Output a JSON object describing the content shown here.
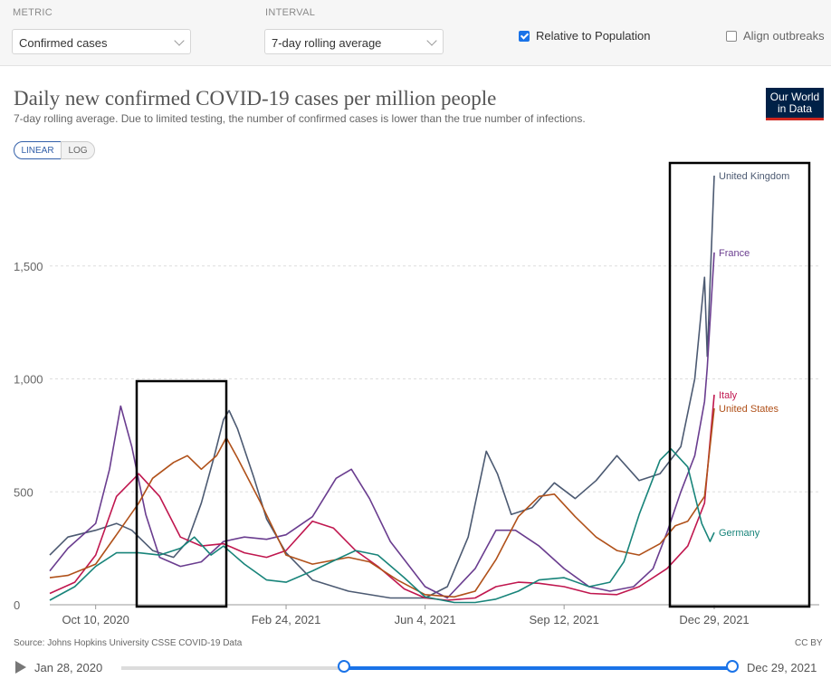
{
  "controls": {
    "metric_label": "METRIC",
    "metric_value": "Confirmed cases",
    "interval_label": "INTERVAL",
    "interval_value": "7-day rolling average",
    "relative_label": "Relative to Population",
    "relative_checked": true,
    "align_label": "Align outbreaks",
    "align_checked": false
  },
  "header": {
    "title": "Daily new confirmed COVID-19 cases per million people",
    "subtitle": "7-day rolling average. Due to limited testing, the number of confirmed cases is lower than the true number of infections.",
    "logo_line1": "Our World",
    "logo_line2": "in Data"
  },
  "scale_toggle": {
    "linear": "LINEAR",
    "log": "LOG",
    "active": "LINEAR"
  },
  "chart_data": {
    "type": "line",
    "ylim": [
      0,
      1900
    ],
    "yticks": [
      0,
      500,
      1000,
      1500
    ],
    "ytick_labels": [
      "0",
      "500",
      "1,000",
      "1,500"
    ],
    "grid": "horizontal dashed",
    "x_start": "2020-09-07",
    "x_end": "2021-12-29",
    "xticks": [
      "2020-10-10",
      "2021-02-24",
      "2021-06-04",
      "2021-09-12",
      "2021-12-29"
    ],
    "xtick_labels": [
      "Oct 10, 2020",
      "Feb 24, 2021",
      "Jun 4, 2021",
      "Sep 12, 2021",
      "Dec 29, 2021"
    ],
    "legend": "end-of-line labels",
    "series": [
      {
        "name": "United Kingdom",
        "color": "#4c5a72",
        "points": [
          [
            "2020-09-07",
            220
          ],
          [
            "2020-09-20",
            300
          ],
          [
            "2020-10-10",
            330
          ],
          [
            "2020-10-25",
            360
          ],
          [
            "2020-11-05",
            330
          ],
          [
            "2020-11-20",
            240
          ],
          [
            "2020-12-05",
            210
          ],
          [
            "2020-12-15",
            280
          ],
          [
            "2020-12-25",
            450
          ],
          [
            "2021-01-03",
            650
          ],
          [
            "2021-01-10",
            820
          ],
          [
            "2021-01-14",
            860
          ],
          [
            "2021-01-20",
            780
          ],
          [
            "2021-02-01",
            560
          ],
          [
            "2021-02-10",
            380
          ],
          [
            "2021-02-24",
            230
          ],
          [
            "2021-03-15",
            110
          ],
          [
            "2021-04-10",
            60
          ],
          [
            "2021-05-10",
            30
          ],
          [
            "2021-06-04",
            30
          ],
          [
            "2021-06-20",
            80
          ],
          [
            "2021-07-05",
            300
          ],
          [
            "2021-07-18",
            680
          ],
          [
            "2021-07-26",
            580
          ],
          [
            "2021-08-05",
            400
          ],
          [
            "2021-08-20",
            430
          ],
          [
            "2021-09-05",
            540
          ],
          [
            "2021-09-20",
            470
          ],
          [
            "2021-10-05",
            550
          ],
          [
            "2021-10-20",
            660
          ],
          [
            "2021-11-05",
            550
          ],
          [
            "2021-11-20",
            580
          ],
          [
            "2021-12-05",
            700
          ],
          [
            "2021-12-15",
            1000
          ],
          [
            "2021-12-22",
            1450
          ],
          [
            "2021-12-24",
            1100
          ],
          [
            "2021-12-29",
            1900
          ]
        ]
      },
      {
        "name": "France",
        "color": "#6a3d8f",
        "points": [
          [
            "2020-09-07",
            150
          ],
          [
            "2020-09-20",
            250
          ],
          [
            "2020-10-10",
            360
          ],
          [
            "2020-10-20",
            600
          ],
          [
            "2020-10-28",
            880
          ],
          [
            "2020-11-05",
            700
          ],
          [
            "2020-11-15",
            400
          ],
          [
            "2020-11-25",
            210
          ],
          [
            "2020-12-10",
            170
          ],
          [
            "2020-12-25",
            190
          ],
          [
            "2021-01-10",
            280
          ],
          [
            "2021-01-25",
            300
          ],
          [
            "2021-02-10",
            290
          ],
          [
            "2021-02-24",
            310
          ],
          [
            "2021-03-15",
            390
          ],
          [
            "2021-04-01",
            560
          ],
          [
            "2021-04-12",
            600
          ],
          [
            "2021-04-25",
            470
          ],
          [
            "2021-05-10",
            280
          ],
          [
            "2021-06-04",
            80
          ],
          [
            "2021-06-20",
            30
          ],
          [
            "2021-07-10",
            160
          ],
          [
            "2021-07-25",
            330
          ],
          [
            "2021-08-08",
            330
          ],
          [
            "2021-08-25",
            260
          ],
          [
            "2021-09-12",
            160
          ],
          [
            "2021-09-30",
            80
          ],
          [
            "2021-10-15",
            60
          ],
          [
            "2021-11-01",
            80
          ],
          [
            "2021-11-15",
            160
          ],
          [
            "2021-11-25",
            320
          ],
          [
            "2021-12-05",
            500
          ],
          [
            "2021-12-15",
            660
          ],
          [
            "2021-12-22",
            900
          ],
          [
            "2021-12-24",
            1050
          ],
          [
            "2021-12-29",
            1560
          ]
        ]
      },
      {
        "name": "Italy",
        "color": "#c0174f",
        "points": [
          [
            "2020-09-07",
            50
          ],
          [
            "2020-09-25",
            100
          ],
          [
            "2020-10-10",
            220
          ],
          [
            "2020-10-25",
            480
          ],
          [
            "2020-11-10",
            580
          ],
          [
            "2020-11-25",
            480
          ],
          [
            "2020-12-10",
            300
          ],
          [
            "2020-12-25",
            260
          ],
          [
            "2021-01-10",
            270
          ],
          [
            "2021-01-25",
            230
          ],
          [
            "2021-02-10",
            210
          ],
          [
            "2021-02-24",
            240
          ],
          [
            "2021-03-15",
            370
          ],
          [
            "2021-03-30",
            340
          ],
          [
            "2021-04-15",
            240
          ],
          [
            "2021-05-01",
            170
          ],
          [
            "2021-05-20",
            70
          ],
          [
            "2021-06-04",
            30
          ],
          [
            "2021-06-20",
            20
          ],
          [
            "2021-07-10",
            30
          ],
          [
            "2021-07-25",
            80
          ],
          [
            "2021-08-10",
            100
          ],
          [
            "2021-08-25",
            95
          ],
          [
            "2021-09-12",
            80
          ],
          [
            "2021-10-01",
            50
          ],
          [
            "2021-10-20",
            45
          ],
          [
            "2021-11-05",
            80
          ],
          [
            "2021-11-25",
            160
          ],
          [
            "2021-12-10",
            260
          ],
          [
            "2021-12-22",
            450
          ],
          [
            "2021-12-29",
            930
          ]
        ]
      },
      {
        "name": "United States",
        "color": "#b0511a",
        "points": [
          [
            "2020-09-07",
            120
          ],
          [
            "2020-09-20",
            130
          ],
          [
            "2020-10-10",
            180
          ],
          [
            "2020-10-25",
            310
          ],
          [
            "2020-11-10",
            450
          ],
          [
            "2020-11-20",
            560
          ],
          [
            "2020-12-05",
            630
          ],
          [
            "2020-12-15",
            660
          ],
          [
            "2020-12-25",
            600
          ],
          [
            "2021-01-05",
            660
          ],
          [
            "2021-01-12",
            740
          ],
          [
            "2021-01-20",
            650
          ],
          [
            "2021-02-05",
            460
          ],
          [
            "2021-02-24",
            220
          ],
          [
            "2021-03-15",
            180
          ],
          [
            "2021-04-10",
            210
          ],
          [
            "2021-04-25",
            190
          ],
          [
            "2021-05-15",
            110
          ],
          [
            "2021-06-04",
            45
          ],
          [
            "2021-06-25",
            35
          ],
          [
            "2021-07-10",
            60
          ],
          [
            "2021-07-25",
            200
          ],
          [
            "2021-08-10",
            390
          ],
          [
            "2021-08-25",
            480
          ],
          [
            "2021-09-05",
            490
          ],
          [
            "2021-09-20",
            390
          ],
          [
            "2021-10-05",
            300
          ],
          [
            "2021-10-20",
            240
          ],
          [
            "2021-11-05",
            220
          ],
          [
            "2021-11-20",
            270
          ],
          [
            "2021-12-01",
            350
          ],
          [
            "2021-12-10",
            370
          ],
          [
            "2021-12-22",
            480
          ],
          [
            "2021-12-29",
            870
          ]
        ]
      },
      {
        "name": "Germany",
        "color": "#18847a",
        "points": [
          [
            "2020-09-07",
            20
          ],
          [
            "2020-09-25",
            80
          ],
          [
            "2020-10-10",
            170
          ],
          [
            "2020-10-25",
            230
          ],
          [
            "2020-11-10",
            230
          ],
          [
            "2020-11-25",
            220
          ],
          [
            "2020-12-10",
            250
          ],
          [
            "2020-12-20",
            300
          ],
          [
            "2021-01-01",
            220
          ],
          [
            "2021-01-10",
            260
          ],
          [
            "2021-01-25",
            180
          ],
          [
            "2021-02-10",
            110
          ],
          [
            "2021-02-24",
            100
          ],
          [
            "2021-03-15",
            150
          ],
          [
            "2021-04-01",
            200
          ],
          [
            "2021-04-15",
            240
          ],
          [
            "2021-05-01",
            220
          ],
          [
            "2021-05-20",
            120
          ],
          [
            "2021-06-04",
            35
          ],
          [
            "2021-06-25",
            10
          ],
          [
            "2021-07-10",
            10
          ],
          [
            "2021-07-25",
            25
          ],
          [
            "2021-08-10",
            60
          ],
          [
            "2021-08-25",
            110
          ],
          [
            "2021-09-12",
            120
          ],
          [
            "2021-09-30",
            80
          ],
          [
            "2021-10-15",
            100
          ],
          [
            "2021-10-25",
            190
          ],
          [
            "2021-11-05",
            400
          ],
          [
            "2021-11-20",
            640
          ],
          [
            "2021-11-28",
            690
          ],
          [
            "2021-12-10",
            610
          ],
          [
            "2021-12-20",
            360
          ],
          [
            "2021-12-26",
            280
          ],
          [
            "2021-12-29",
            320
          ]
        ]
      }
    ]
  },
  "footer": {
    "source": "Source: Johns Hopkins University CSSE COVID-19 Data",
    "license": "CC BY"
  },
  "timeline": {
    "start_date": "Jan 28, 2020",
    "end_date": "Dec 29, 2021",
    "selected_start": "2020-09-07",
    "selected_end": "2021-12-29"
  }
}
